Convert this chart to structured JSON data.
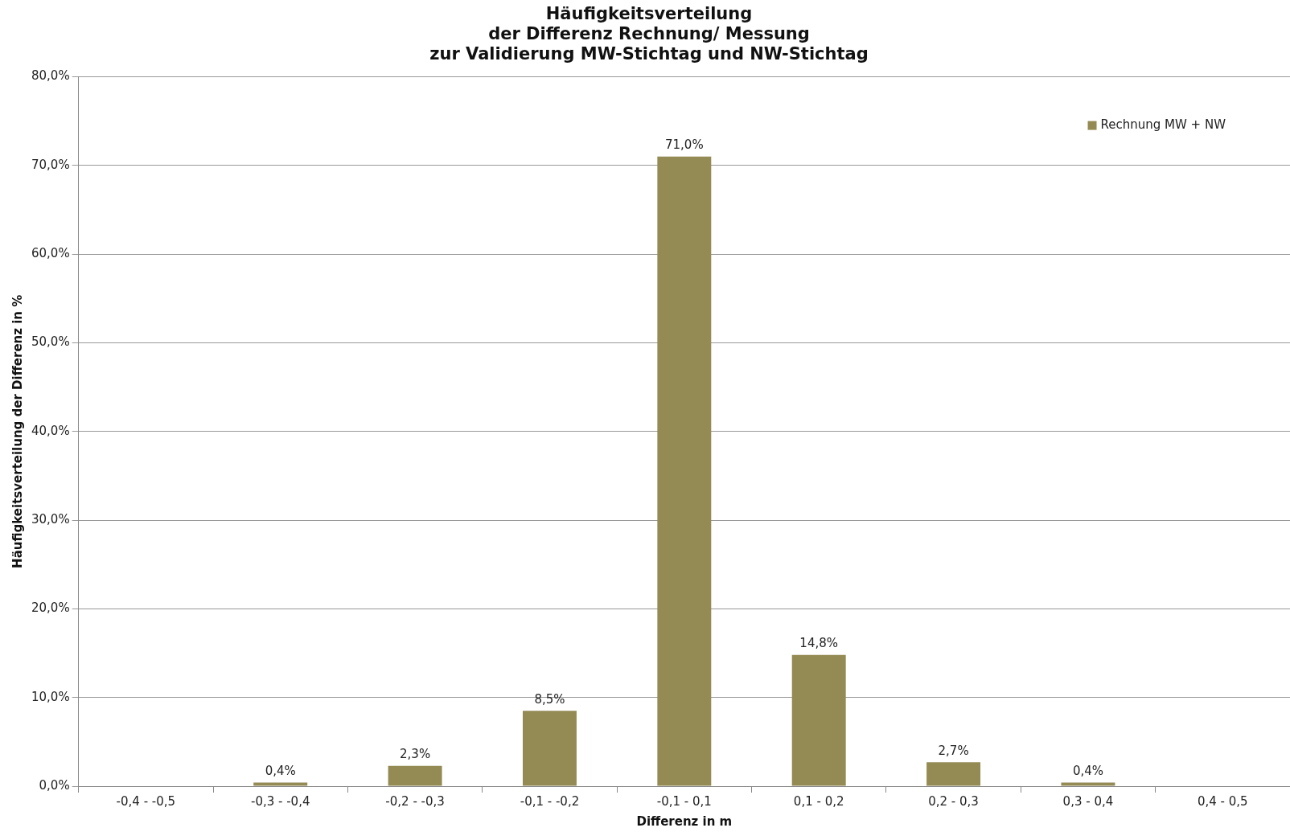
{
  "chart_data": {
    "type": "bar",
    "title": "Häufigkeitsverteilung\nder Differenz Rechnung/ Messung\nzur Validierung MW-Stichtag und NW-Stichtag",
    "xlabel": "Differenz in m",
    "ylabel": "Häufigkeitsverteilung der Differenz in %",
    "categories": [
      "-0,4 - -0,5",
      "-0,3 - -0,4",
      "-0,2 - -0,3",
      "-0,1 - -0,2",
      "-0,1 - 0,1",
      "0,1 - 0,2",
      "0,2 - 0,3",
      "0,3 - 0,4",
      "0,4 - 0,5"
    ],
    "series": [
      {
        "name": "Rechnung MW + NW",
        "color": "#948a54",
        "values": [
          0,
          0.4,
          2.3,
          8.5,
          71.0,
          14.8,
          2.7,
          0.4,
          0
        ],
        "value_labels": [
          null,
          "0,4%",
          "2,3%",
          "8,5%",
          "71,0%",
          "14,8%",
          "2,7%",
          "0,4%",
          null
        ]
      }
    ],
    "ylim": [
      0,
      80
    ],
    "yticks": [
      {
        "value": 0,
        "label": "0,0%"
      },
      {
        "value": 10,
        "label": "10,0%"
      },
      {
        "value": 20,
        "label": "20,0%"
      },
      {
        "value": 30,
        "label": "30,0%"
      },
      {
        "value": 40,
        "label": "40,0%"
      },
      {
        "value": 50,
        "label": "50,0%"
      },
      {
        "value": 60,
        "label": "60,0%"
      },
      {
        "value": 70,
        "label": "70,0%"
      },
      {
        "value": 80,
        "label": "80,0%"
      }
    ],
    "grid": "y",
    "legend": "top right"
  }
}
